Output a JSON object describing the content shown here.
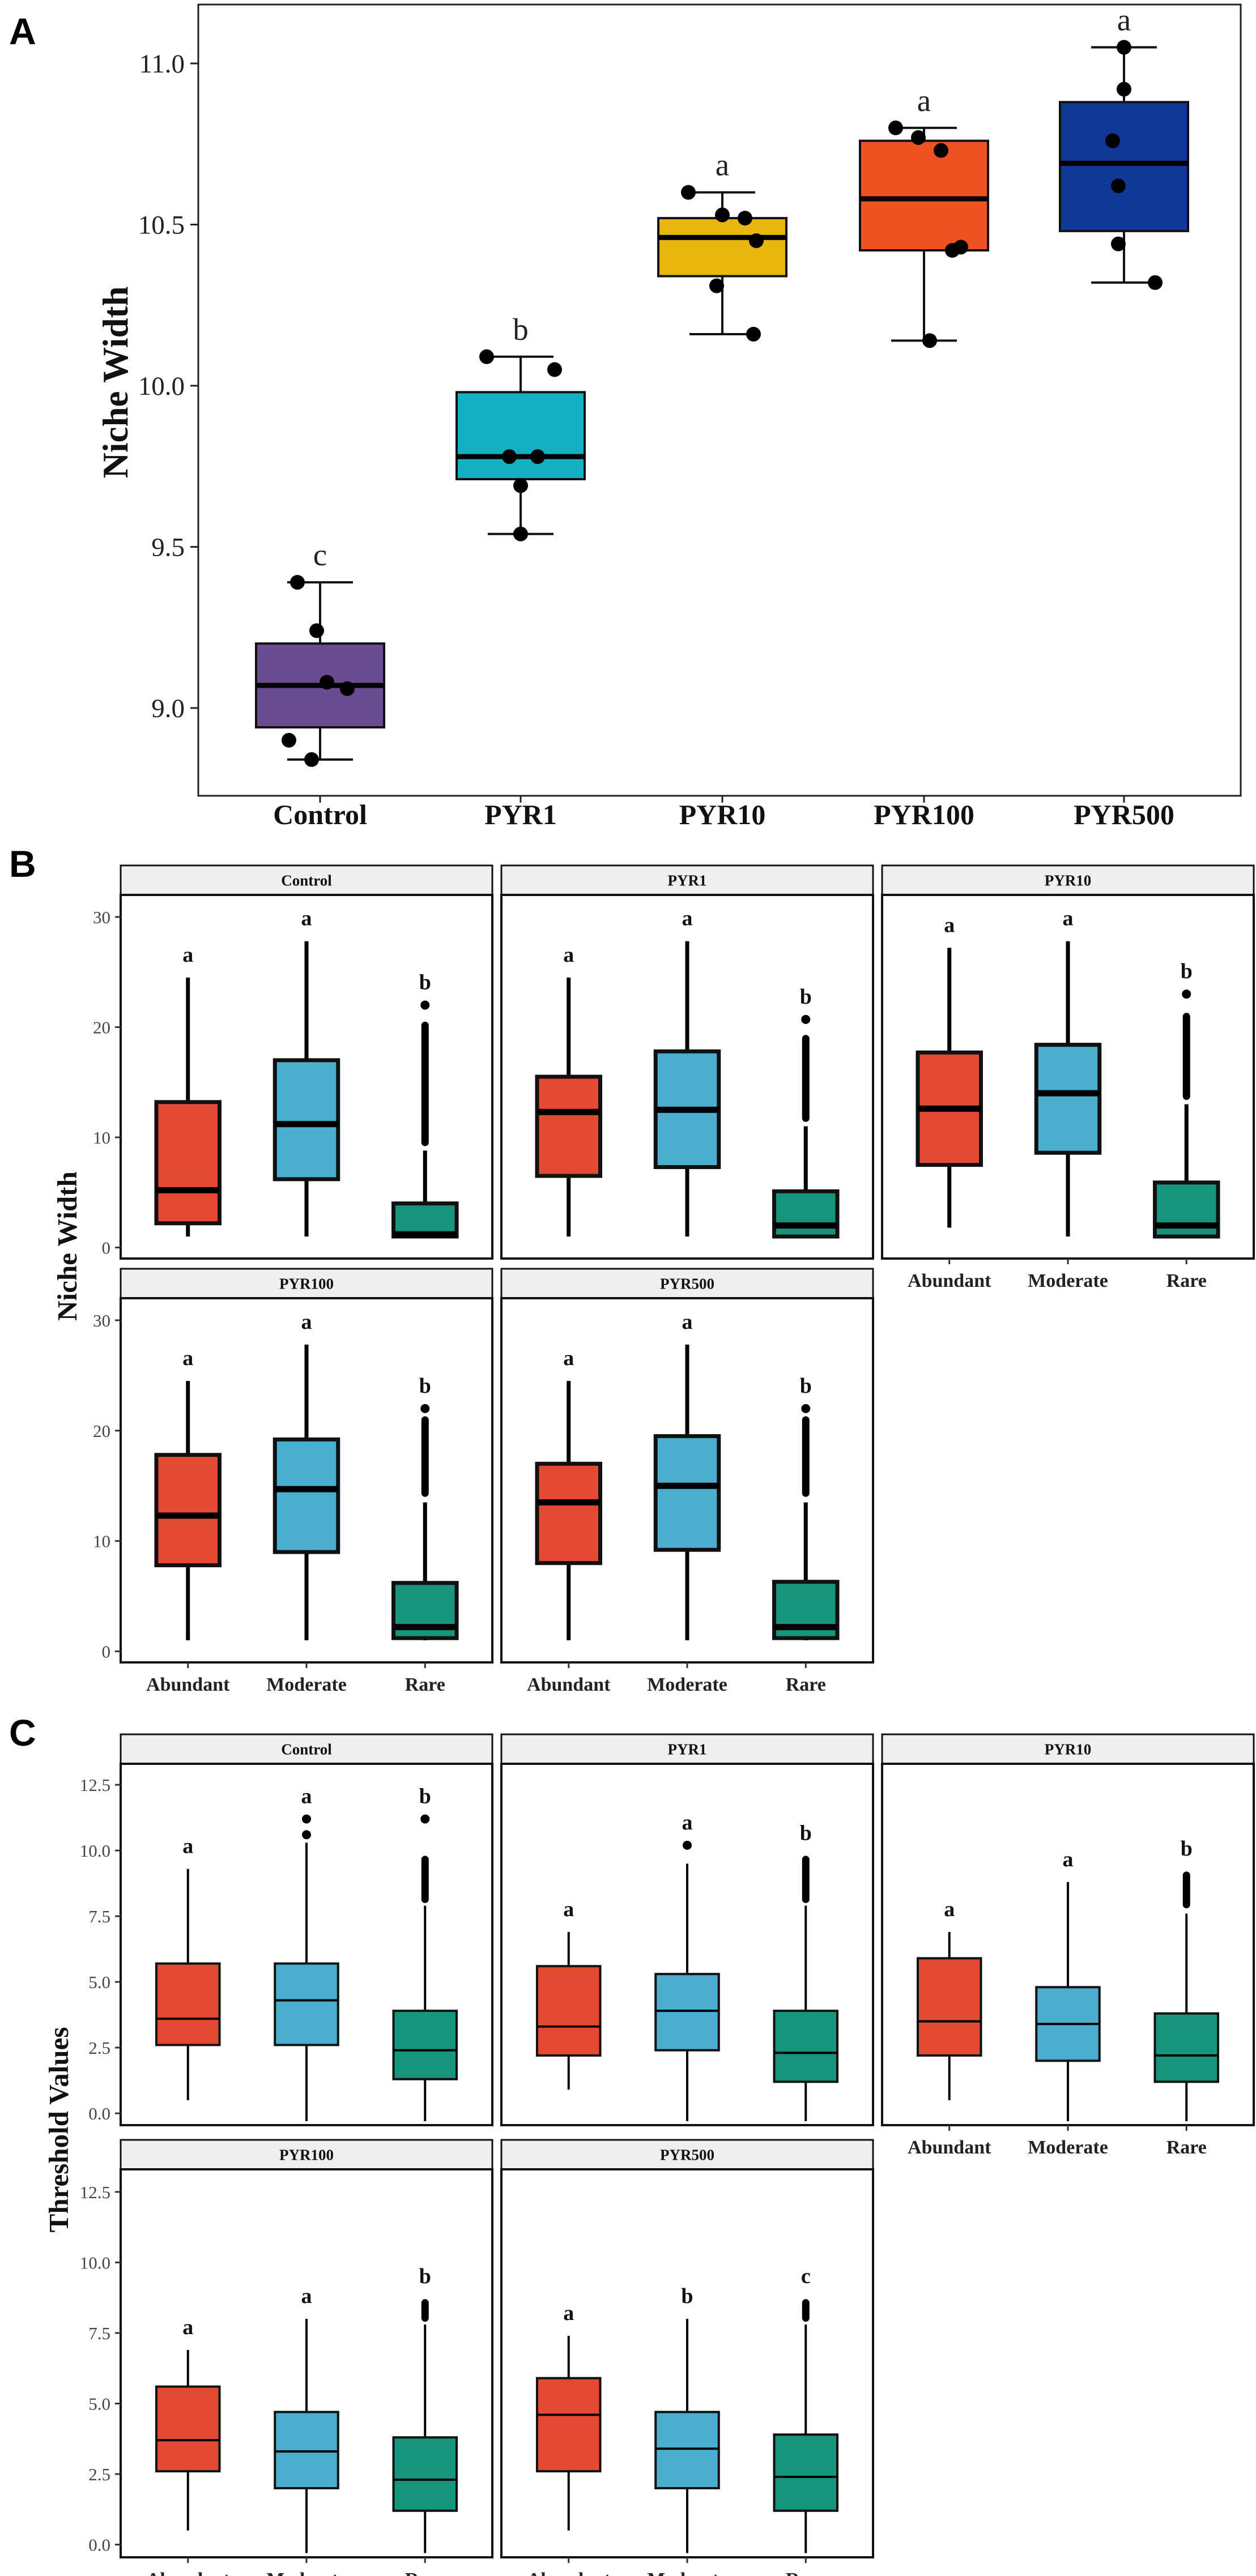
{
  "chart_data": [
    {
      "type": "box",
      "panel_label": "A",
      "title": "",
      "xlabel": "",
      "ylabel": "Niche Width",
      "ylim": [
        8.75,
        11.2
      ],
      "yticks": [
        "9.0",
        "9.5",
        "10.0",
        "10.5",
        "11.0"
      ],
      "categories": [
        "Control",
        "PYR1",
        "PYR10",
        "PYR100",
        "PYR500"
      ],
      "colors": [
        "#6a4c93",
        "#13b2c2",
        "#e7b70d",
        "#ee5221",
        "#0f3898"
      ],
      "boxes": [
        {
          "min": 8.84,
          "q1": 8.94,
          "median": 9.07,
          "q3": 9.2,
          "max": 9.39
        },
        {
          "min": 9.54,
          "q1": 9.71,
          "median": 9.78,
          "q3": 9.98,
          "max": 10.09
        },
        {
          "min": 10.16,
          "q1": 10.34,
          "median": 10.46,
          "q3": 10.52,
          "max": 10.6
        },
        {
          "min": 10.14,
          "q1": 10.42,
          "median": 10.58,
          "q3": 10.76,
          "max": 10.8
        },
        {
          "min": 10.32,
          "q1": 10.48,
          "median": 10.69,
          "q3": 10.88,
          "max": 11.05
        }
      ],
      "points": [
        [
          9.39,
          9.24,
          9.08,
          9.06,
          8.9,
          8.84
        ],
        [
          10.09,
          10.05,
          9.78,
          9.78,
          9.69,
          9.54
        ],
        [
          10.6,
          10.53,
          10.52,
          10.45,
          10.31,
          10.16
        ],
        [
          10.8,
          10.77,
          10.73,
          10.43,
          10.42,
          10.14
        ],
        [
          11.05,
          10.92,
          10.76,
          10.62,
          10.44,
          10.32
        ]
      ],
      "letters": [
        "c",
        "b",
        "a",
        "a",
        "a"
      ]
    },
    {
      "type": "box-facet",
      "panel_label": "B",
      "ylabel": "Niche Width",
      "ylim": [
        -1,
        32
      ],
      "yticks": [
        "0",
        "10",
        "20",
        "30"
      ],
      "categories": [
        "Abundant",
        "Moderate",
        "Rare"
      ],
      "colors": [
        "#e24a33",
        "#4aaed1",
        "#16957d"
      ],
      "facets": [
        {
          "name": "Control",
          "boxes": [
            {
              "min": 1,
              "q1": 2.2,
              "median": 5.2,
              "q3": 13.2,
              "max": 24.5
            },
            {
              "min": 1,
              "q1": 6.2,
              "median": 11.2,
              "q3": 17,
              "max": 27.8
            },
            {
              "min": 1,
              "q1": 1,
              "median": 1.2,
              "q3": 4,
              "max": 8.8
            }
          ],
          "outlier_ranges": [
            null,
            null,
            [
              9.2,
              20.5
            ]
          ],
          "outlier_tops": [
            null,
            null,
            22
          ],
          "letters": [
            "a",
            "a",
            "b"
          ]
        },
        {
          "name": "PYR1",
          "boxes": [
            {
              "min": 1,
              "q1": 6.5,
              "median": 12.3,
              "q3": 15.5,
              "max": 24.5
            },
            {
              "min": 1,
              "q1": 7.3,
              "median": 12.5,
              "q3": 17.8,
              "max": 27.8
            },
            {
              "min": 1,
              "q1": 1,
              "median": 2,
              "q3": 5.1,
              "max": 11
            }
          ],
          "outlier_ranges": [
            null,
            null,
            [
              11.4,
              19.3
            ]
          ],
          "outlier_tops": [
            null,
            null,
            20.7
          ],
          "letters": [
            "a",
            "a",
            "b"
          ]
        },
        {
          "name": "PYR10",
          "boxes": [
            {
              "min": 1.8,
              "q1": 7.5,
              "median": 12.6,
              "q3": 17.7,
              "max": 27.2
            },
            {
              "min": 1,
              "q1": 8.6,
              "median": 14,
              "q3": 18.4,
              "max": 27.8
            },
            {
              "min": 1,
              "q1": 1,
              "median": 2,
              "q3": 5.9,
              "max": 13
            }
          ],
          "outlier_ranges": [
            null,
            null,
            [
              13.4,
              21.3
            ]
          ],
          "outlier_tops": [
            null,
            null,
            23
          ],
          "letters": [
            "a",
            "a",
            "b"
          ]
        },
        {
          "name": "PYR100",
          "boxes": [
            {
              "min": 1,
              "q1": 7.8,
              "median": 12.3,
              "q3": 17.8,
              "max": 24.5
            },
            {
              "min": 1,
              "q1": 9,
              "median": 14.7,
              "q3": 19.2,
              "max": 27.8
            },
            {
              "min": 1,
              "q1": 1.2,
              "median": 2.2,
              "q3": 6.2,
              "max": 13.5
            }
          ],
          "outlier_ranges": [
            null,
            null,
            [
              14,
              21.3
            ]
          ],
          "outlier_tops": [
            null,
            null,
            22
          ],
          "letters": [
            "a",
            "a",
            "b"
          ]
        },
        {
          "name": "PYR500",
          "boxes": [
            {
              "min": 1,
              "q1": 8,
              "median": 13.5,
              "q3": 17,
              "max": 24.5
            },
            {
              "min": 1,
              "q1": 9.2,
              "median": 15,
              "q3": 19.5,
              "max": 27.8
            },
            {
              "min": 1,
              "q1": 1.2,
              "median": 2.2,
              "q3": 6.3,
              "max": 13.5
            }
          ],
          "outlier_ranges": [
            null,
            null,
            [
              14,
              21.3
            ]
          ],
          "outlier_tops": [
            null,
            null,
            22
          ],
          "letters": [
            "a",
            "a",
            "b"
          ]
        }
      ]
    },
    {
      "type": "box-facet",
      "panel_label": "C",
      "ylabel": "Threshold Values",
      "ylim": [
        -0.45,
        13.3
      ],
      "yticks": [
        "0.0",
        "2.5",
        "5.0",
        "7.5",
        "10.0",
        "12.5"
      ],
      "categories": [
        "Abundant",
        "Moderate",
        "Rare"
      ],
      "colors": [
        "#e24a33",
        "#4aaed1",
        "#16957d"
      ],
      "facets": [
        {
          "name": "Control",
          "boxes": [
            {
              "min": 0.5,
              "q1": 2.6,
              "median": 3.6,
              "q3": 5.7,
              "max": 9.3
            },
            {
              "min": -0.3,
              "q1": 2.6,
              "median": 4.3,
              "q3": 5.7,
              "max": 10.3
            },
            {
              "min": -0.3,
              "q1": 1.3,
              "median": 2.4,
              "q3": 3.9,
              "max": 7.9
            }
          ],
          "outlier_points": [
            [],
            [
              10.6,
              11.2
            ],
            []
          ],
          "outlier_ranges": [
            null,
            null,
            [
              8,
              9.8
            ]
          ],
          "outlier_tops": [
            null,
            null,
            11.2
          ],
          "letters": [
            "a",
            "a",
            "b"
          ]
        },
        {
          "name": "PYR1",
          "boxes": [
            {
              "min": 0.9,
              "q1": 2.2,
              "median": 3.3,
              "q3": 5.6,
              "max": 6.9
            },
            {
              "min": -0.3,
              "q1": 2.4,
              "median": 3.9,
              "q3": 5.3,
              "max": 9.5
            },
            {
              "min": -0.3,
              "q1": 1.2,
              "median": 2.3,
              "q3": 3.9,
              "max": 7.9
            }
          ],
          "outlier_points": [
            [],
            [
              10.2
            ],
            []
          ],
          "outlier_ranges": [
            null,
            null,
            [
              8,
              9.8
            ]
          ],
          "outlier_tops": [
            null,
            null,
            null
          ],
          "letters": [
            "a",
            "a",
            "b"
          ]
        },
        {
          "name": "PYR10",
          "boxes": [
            {
              "min": 0.5,
              "q1": 2.2,
              "median": 3.5,
              "q3": 5.9,
              "max": 6.9
            },
            {
              "min": -0.3,
              "q1": 2,
              "median": 3.4,
              "q3": 4.8,
              "max": 8.8
            },
            {
              "min": -0.3,
              "q1": 1.2,
              "median": 2.2,
              "q3": 3.8,
              "max": 7.6
            }
          ],
          "outlier_points": [
            [],
            [],
            []
          ],
          "outlier_ranges": [
            null,
            null,
            [
              7.8,
              9.2
            ]
          ],
          "outlier_tops": [
            null,
            null,
            null
          ],
          "letters": [
            "a",
            "a",
            "b"
          ]
        },
        {
          "name": "PYR100",
          "boxes": [
            {
              "min": 0.5,
              "q1": 2.6,
              "median": 3.7,
              "q3": 5.6,
              "max": 6.9
            },
            {
              "min": -0.3,
              "q1": 2,
              "median": 3.3,
              "q3": 4.7,
              "max": 8
            },
            {
              "min": -0.3,
              "q1": 1.2,
              "median": 2.3,
              "q3": 3.8,
              "max": 7.8
            }
          ],
          "outlier_points": [
            [],
            [],
            []
          ],
          "outlier_ranges": [
            null,
            null,
            [
              7.9,
              8.7
            ]
          ],
          "outlier_tops": [
            null,
            null,
            null
          ],
          "letters": [
            "a",
            "a",
            "b"
          ]
        },
        {
          "name": "PYR500",
          "boxes": [
            {
              "min": 0.5,
              "q1": 2.6,
              "median": 4.6,
              "q3": 5.9,
              "max": 7.4
            },
            {
              "min": -0.3,
              "q1": 2,
              "median": 3.4,
              "q3": 4.7,
              "max": 8
            },
            {
              "min": -0.3,
              "q1": 1.2,
              "median": 2.4,
              "q3": 3.9,
              "max": 7.8
            }
          ],
          "outlier_points": [
            [],
            [],
            []
          ],
          "outlier_ranges": [
            null,
            null,
            [
              7.9,
              8.7
            ]
          ],
          "outlier_tops": [
            null,
            null,
            null
          ],
          "letters": [
            "a",
            "b",
            "c"
          ]
        }
      ]
    }
  ]
}
